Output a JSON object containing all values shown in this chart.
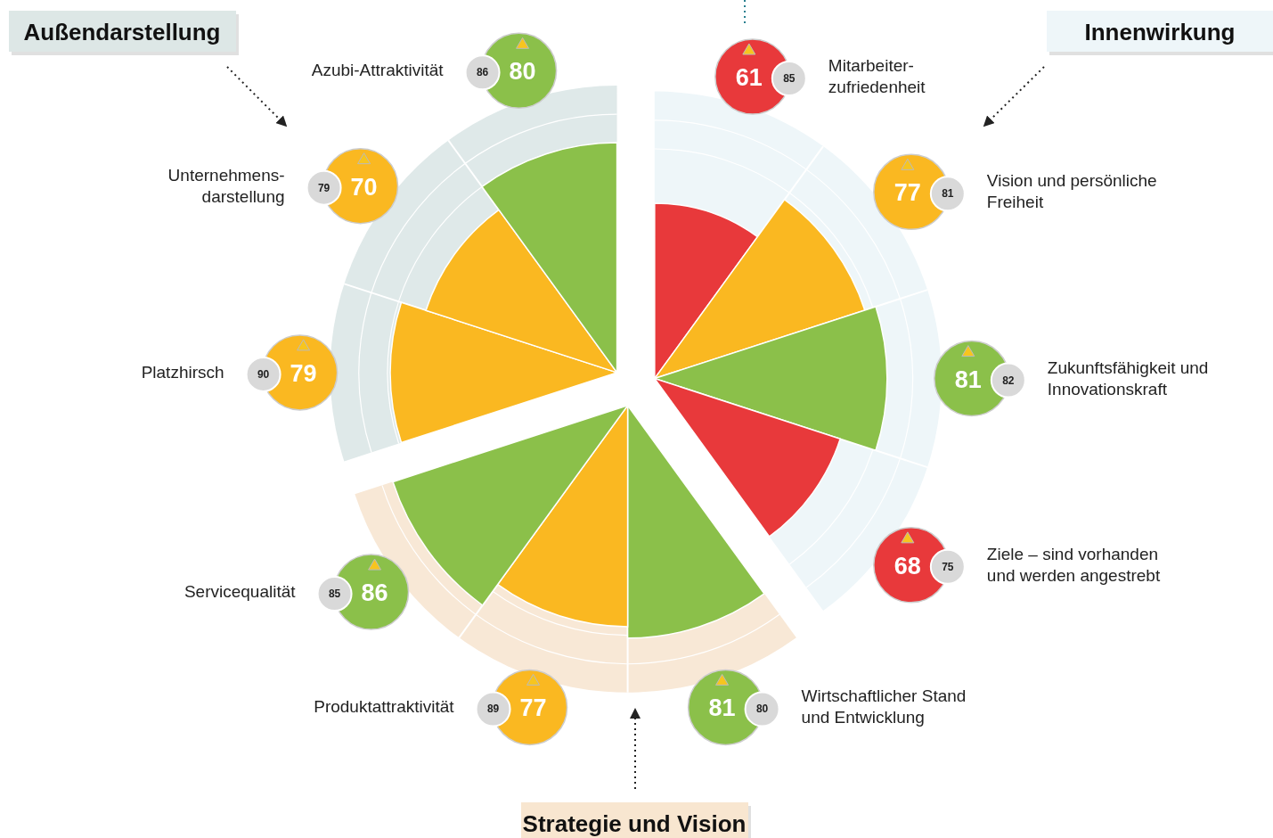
{
  "chart_data": {
    "type": "other",
    "categories": [
      "Mitarbeiter-\nzufriedenheit",
      "Vision und persönliche\nFreiheit",
      "Zukunftsfähigkeit und\nInnovationskraft",
      "Ziele – sind vorhanden\nund werden angestrebt",
      "Wirtschaftlicher Stand\nund Entwicklung",
      "Produktattraktivität",
      "Servicequalität",
      "Platzhirsch",
      "Unternehmens-\ndarstellung",
      "Azubi-Attraktivität"
    ],
    "series": [
      {
        "values": [
          61,
          77,
          81,
          68,
          81,
          77,
          86,
          79,
          70,
          80
        ],
        "colors": [
          "#e8393b",
          "#fab821",
          "#8bc04a",
          "#e8393b",
          "#8bc04a",
          "#fab821",
          "#8bc04a",
          "#fab821",
          "#fab821",
          "#8bc04a"
        ]
      },
      {
        "values": [
          85,
          81,
          82,
          75,
          80,
          89,
          85,
          90,
          79,
          86
        ],
        "color": "#d9d9d9"
      }
    ],
    "data_labels": true,
    "annotations": [
      "Innenwirkung",
      "Strategie und Vision",
      "Außendarstellung"
    ]
  }
}
